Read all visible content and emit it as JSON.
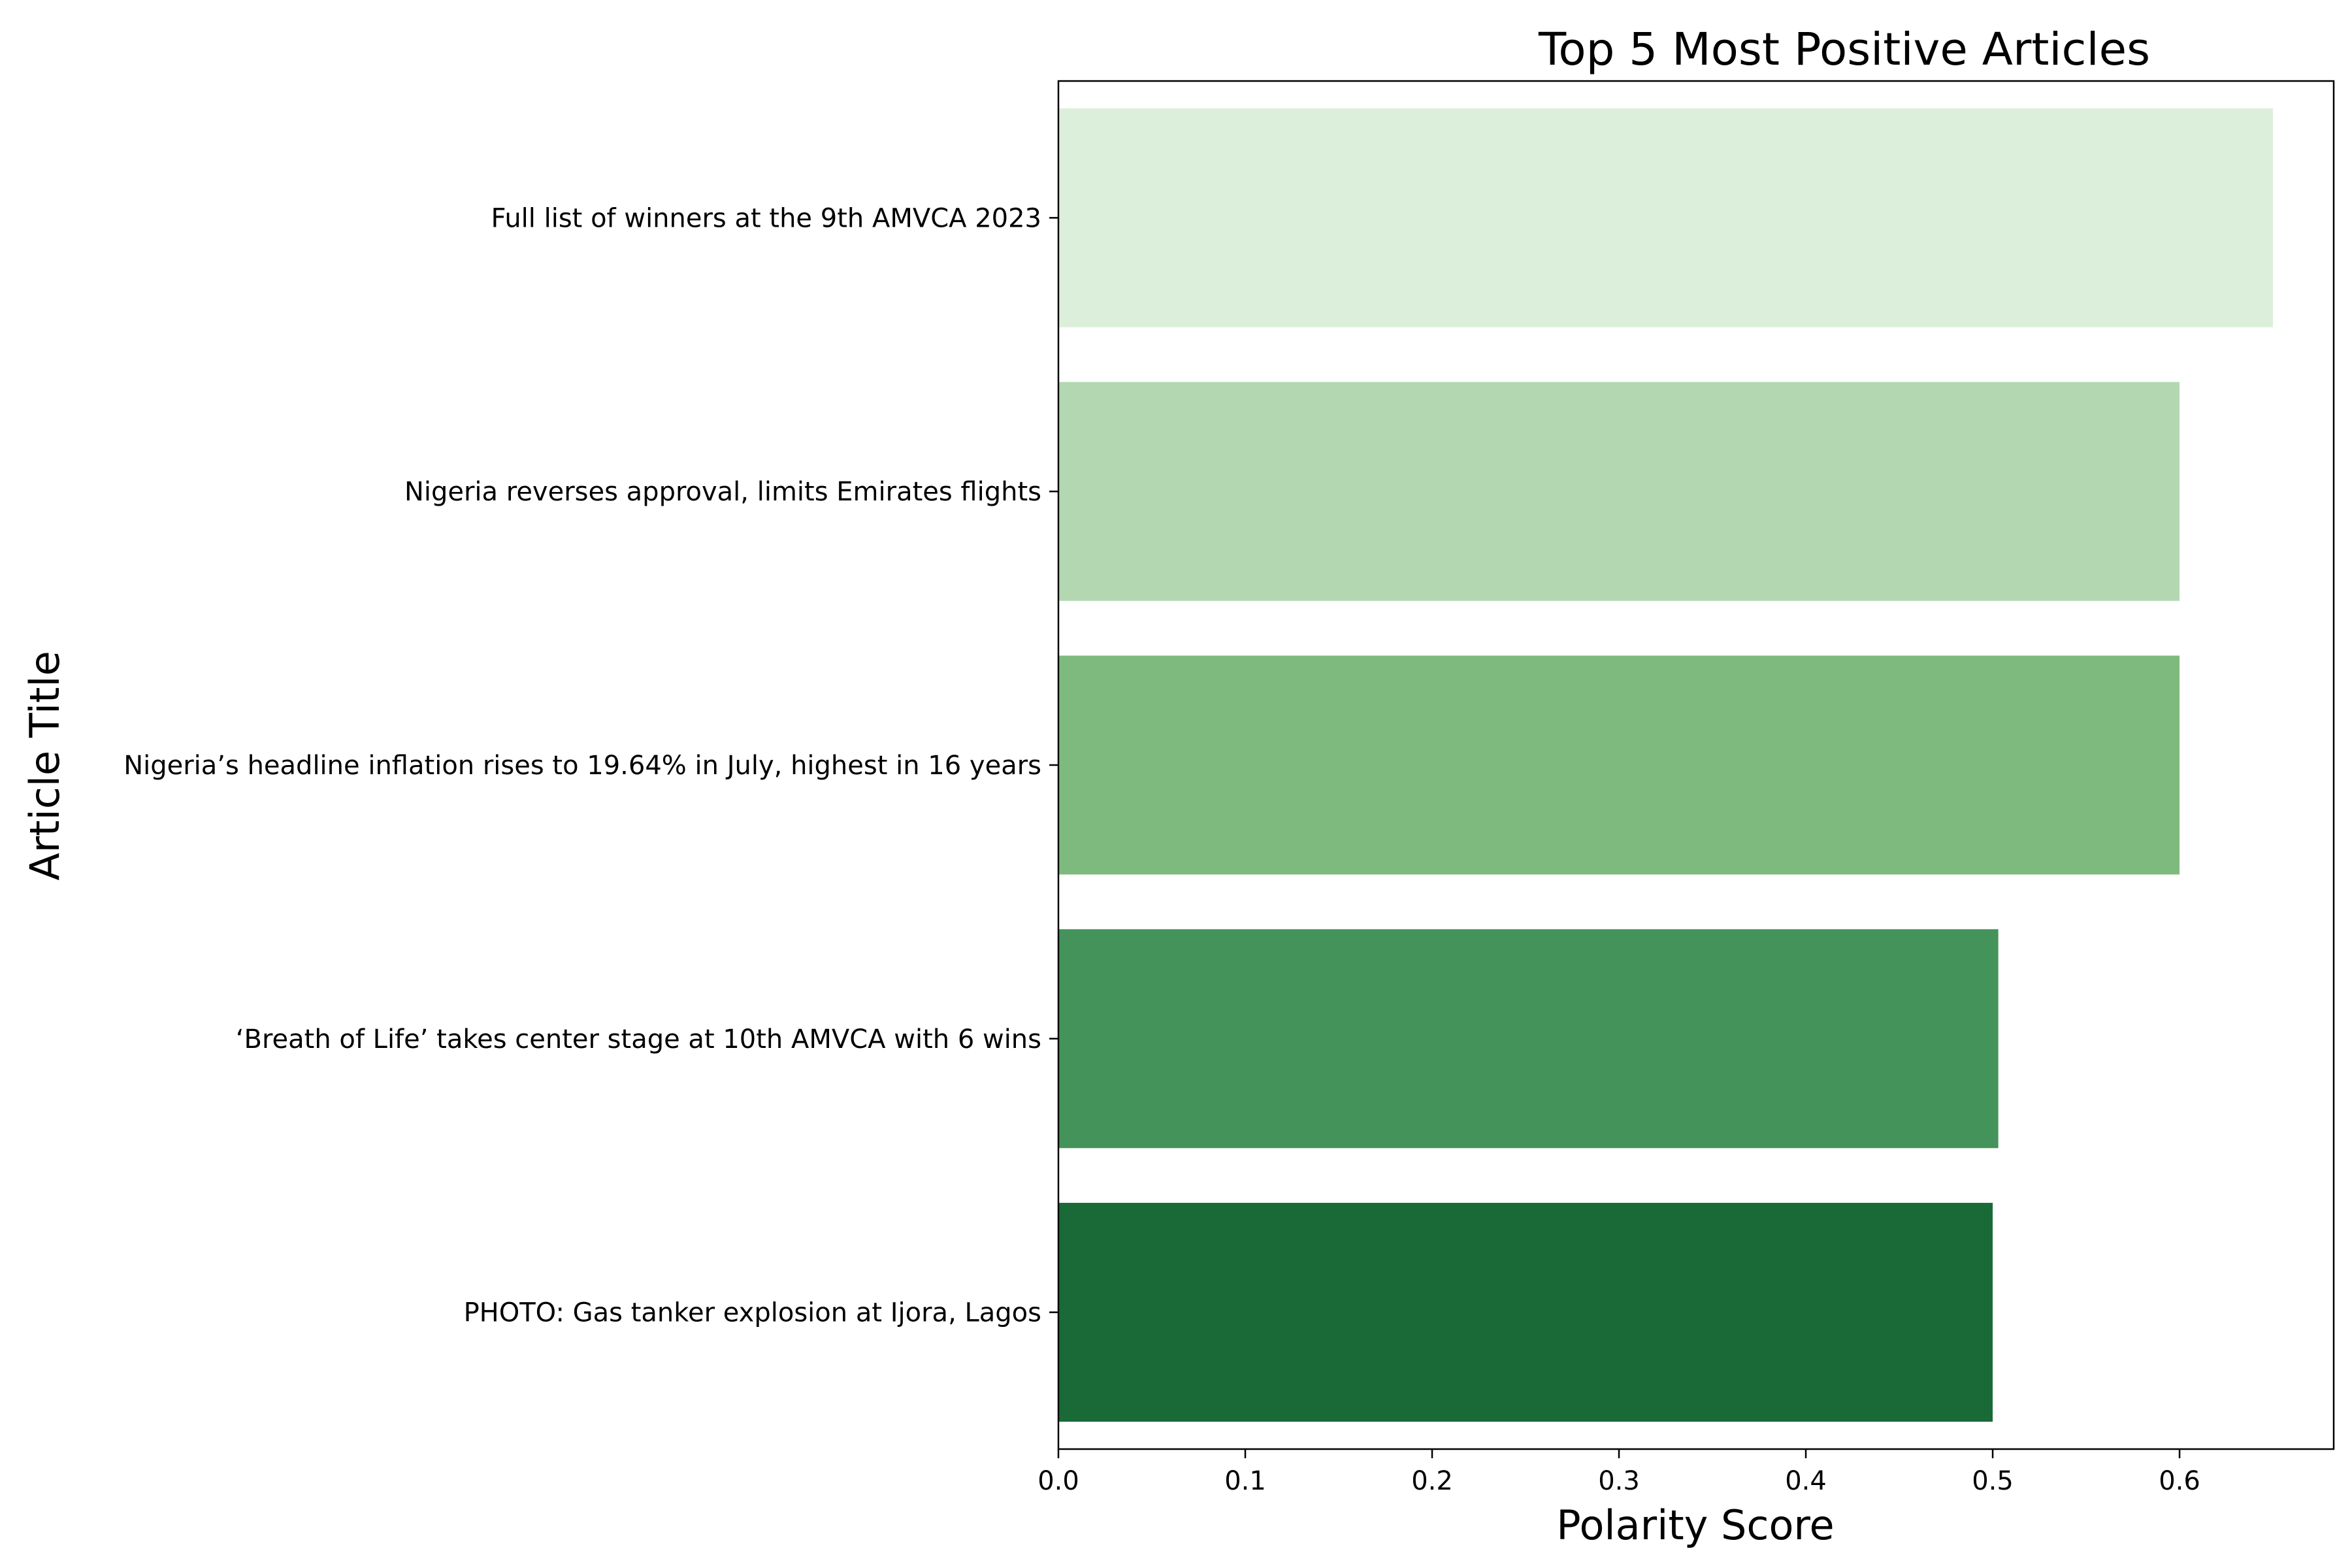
{
  "chart_data": {
    "type": "bar",
    "orientation": "horizontal",
    "title": "Top 5 Most Positive Articles",
    "xlabel": "Polarity Score",
    "ylabel": "Article Title",
    "categories": [
      "Full list of winners at the 9th AMVCA 2023",
      "Nigeria reverses approval, limits Emirates flights",
      "Nigeria’s headline inflation rises to 19.64% in July, highest in 16 years",
      "‘Breath of Life’ takes center stage at 10th AMVCA with 6 wins",
      "PHOTO: Gas tanker explosion at Ijora, Lagos"
    ],
    "values": [
      0.65,
      0.6,
      0.6,
      0.503,
      0.5
    ],
    "colors": [
      "#dcefda",
      "#b3d8b1",
      "#7eba7e",
      "#44935a",
      "#1a6a38"
    ],
    "xlim": [
      0,
      0.6825
    ],
    "xticks": [
      "0.0",
      "0.1",
      "0.2",
      "0.3",
      "0.4",
      "0.5",
      "0.6"
    ],
    "grid": false,
    "legend": "none"
  }
}
